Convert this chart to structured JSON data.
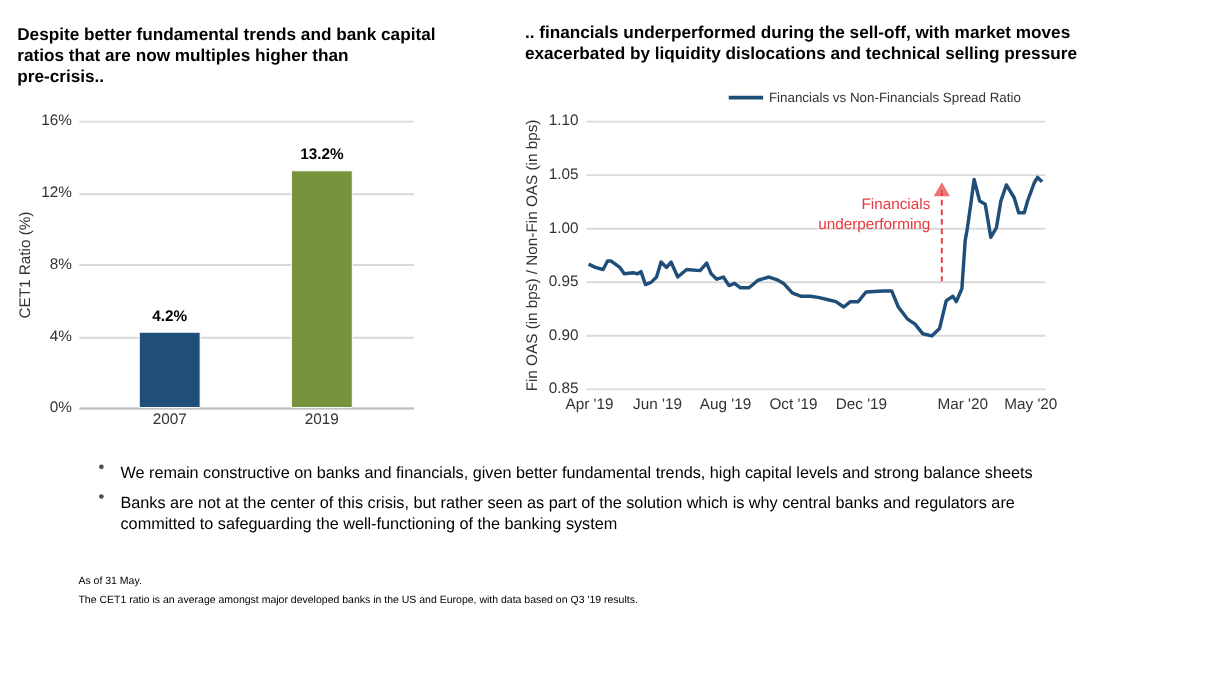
{
  "chart_data": [
    {
      "type": "bar",
      "title": "Despite better fundamental trends and bank capital ratios that are now multiples higher than pre-crisis..",
      "ylabel": "CET1 Ratio (%)",
      "categories": [
        "2007",
        "2019"
      ],
      "values": [
        4.2,
        13.2
      ],
      "colors": [
        "#1f4e79",
        "#77933c"
      ],
      "value_labels": [
        "4.2%",
        "13.2%"
      ],
      "ylim": [
        0,
        16
      ],
      "yticks": [
        {
          "value": 0,
          "label": "0%"
        },
        {
          "value": 4,
          "label": "4%"
        },
        {
          "value": 8,
          "label": "8%"
        },
        {
          "value": 12,
          "label": "12%"
        },
        {
          "value": 16,
          "label": "16%"
        }
      ],
      "grid": "y",
      "legend": false
    },
    {
      "type": "line",
      "title": ".. financials underperformed during the sell-off, with market moves exacerbated by liquidity dislocations and technical selling pressure",
      "ylabel": "Fin OAS (in bps) / Non-Fin OAS (in bps)",
      "legend": "top right",
      "grid": "y",
      "marker": "none",
      "line_style": "solid",
      "x": [
        "2019-04-01",
        "2019-04-07",
        "2019-04-14",
        "2019-04-18",
        "2019-04-21",
        "2019-04-29",
        "2019-05-03",
        "2019-05-11",
        "2019-05-15",
        "2019-05-18",
        "2019-05-22",
        "2019-05-27",
        "2019-06-01",
        "2019-06-05",
        "2019-06-10",
        "2019-06-14",
        "2019-06-20",
        "2019-06-28",
        "2019-07-10",
        "2019-07-16",
        "2019-07-20",
        "2019-07-25",
        "2019-07-31",
        "2019-08-05",
        "2019-08-10",
        "2019-08-15",
        "2019-08-23",
        "2019-08-31",
        "2019-09-10",
        "2019-09-18",
        "2019-09-23",
        "2019-10-01",
        "2019-10-09",
        "2019-10-17",
        "2019-10-24",
        "2019-11-01",
        "2019-11-09",
        "2019-11-16",
        "2019-11-22",
        "2019-11-29",
        "2019-12-06",
        "2019-12-21",
        "2019-12-29",
        "2020-01-04",
        "2020-01-12",
        "2020-01-19",
        "2020-01-26",
        "2020-02-03",
        "2020-02-10",
        "2020-02-16",
        "2020-02-22",
        "2020-02-25",
        "2020-03-01",
        "2020-03-04",
        "2020-03-06",
        "2020-03-09",
        "2020-03-12",
        "2020-03-17",
        "2020-03-22",
        "2020-03-27",
        "2020-04-01",
        "2020-04-05",
        "2020-04-10",
        "2020-04-17",
        "2020-04-21",
        "2020-04-26",
        "2020-04-29",
        "2020-05-05",
        "2020-05-08",
        "2020-05-12"
      ],
      "series": [
        {
          "name": "Financials vs Non-Financials Spread Ratio",
          "color": "#1f4e79",
          "values": [
            0.966,
            0.963,
            0.961,
            0.969,
            0.969,
            0.963,
            0.957,
            0.958,
            0.957,
            0.959,
            0.947,
            0.949,
            0.954,
            0.968,
            0.963,
            0.968,
            0.954,
            0.961,
            0.96,
            0.967,
            0.957,
            0.952,
            0.954,
            0.946,
            0.948,
            0.944,
            0.944,
            0.951,
            0.954,
            0.951,
            0.948,
            0.939,
            0.936,
            0.936,
            0.935,
            0.933,
            0.931,
            0.926,
            0.931,
            0.931,
            0.94,
            0.941,
            0.941,
            0.926,
            0.915,
            0.91,
            0.901,
            0.899,
            0.906,
            0.932,
            0.936,
            0.931,
            0.943,
            0.988,
            1.0,
            1.022,
            1.045,
            1.025,
            1.022,
            0.991,
            1.0,
            1.025,
            1.04,
            1.028,
            1.014,
            1.014,
            1.025,
            1.042,
            1.047,
            1.043
          ]
        }
      ],
      "xlim": [
        "2019-03-29",
        "2020-05-14"
      ],
      "xticks": [
        {
          "value": "2019-04-01",
          "label": "Apr '19"
        },
        {
          "value": "2019-06-01",
          "label": "Jun '19"
        },
        {
          "value": "2019-08-01",
          "label": "Aug '19"
        },
        {
          "value": "2019-10-01",
          "label": "Oct '19"
        },
        {
          "value": "2019-12-01",
          "label": "Dec '19"
        },
        {
          "value": "2020-03-01",
          "label": "Mar '20"
        },
        {
          "value": "2020-05-01",
          "label": "May '20"
        }
      ],
      "ylim": [
        0.85,
        1.1
      ],
      "yticks": [
        {
          "value": 0.85,
          "label": "0.85"
        },
        {
          "value": 0.9,
          "label": "0.90"
        },
        {
          "value": 0.95,
          "label": "0.95"
        },
        {
          "value": 1.0,
          "label": "1.00"
        },
        {
          "value": 1.05,
          "label": "1.05"
        },
        {
          "value": 1.1,
          "label": "1.10"
        }
      ],
      "annotations": [
        {
          "text": "Financials underperforming",
          "x": "2020-02-12",
          "y": 1.035
        }
      ]
    },
    {
      "type": "other",
      "annotations": [
        "We remain constructive on banks and financials, given better fundamental trends, high capital levels and strong balance sheets",
        "Banks are not at the center of this crisis, but rather seen as part of the solution which is why central banks and regulators are committed to safeguarding the well-functioning of the banking system",
        "As of 31 May.",
        "The CET1 ratio is an average amongst major developed banks in the US and Europe, with data based on Q3 '19 results."
      ]
    }
  ]
}
